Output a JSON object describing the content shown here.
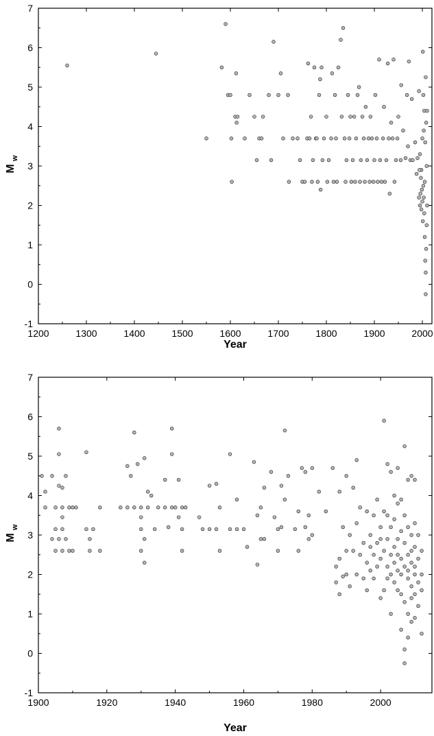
{
  "colors": {
    "marker_fill": "#b7b7b7",
    "marker_edge": "#333333",
    "axis": "#000000"
  },
  "chart_data": [
    {
      "type": "scatter",
      "xlabel": "Year",
      "ylabel": {
        "main": "M",
        "sub": "w"
      },
      "xlim": [
        1200,
        2020
      ],
      "ylim": [
        -1,
        7
      ],
      "xticks": [
        "1200",
        "1300",
        "1400",
        "1500",
        "1600",
        "1700",
        "1800",
        "1900",
        "2000"
      ],
      "yticks": [
        "-1",
        "0",
        "1",
        "2",
        "3",
        "4",
        "5",
        "6",
        "7"
      ],
      "grid": false,
      "legend": "none",
      "points": [
        [
          1260,
          5.55
        ],
        [
          1445,
          5.85
        ],
        [
          1550,
          3.7
        ],
        [
          1582,
          5.5
        ],
        [
          1590,
          6.6
        ],
        [
          1595,
          4.8
        ],
        [
          1600,
          4.8
        ],
        [
          1602,
          3.7
        ],
        [
          1603,
          2.6
        ],
        [
          1610,
          4.25
        ],
        [
          1612,
          5.35
        ],
        [
          1613,
          4.1
        ],
        [
          1615,
          4.25
        ],
        [
          1630,
          3.7
        ],
        [
          1640,
          4.8
        ],
        [
          1650,
          4.25
        ],
        [
          1655,
          3.15
        ],
        [
          1660,
          3.7
        ],
        [
          1665,
          3.7
        ],
        [
          1668,
          4.25
        ],
        [
          1680,
          4.8
        ],
        [
          1685,
          3.15
        ],
        [
          1690,
          6.15
        ],
        [
          1700,
          4.8
        ],
        [
          1705,
          5.35
        ],
        [
          1710,
          3.7
        ],
        [
          1720,
          4.8
        ],
        [
          1722,
          2.6
        ],
        [
          1730,
          3.7
        ],
        [
          1740,
          3.7
        ],
        [
          1745,
          3.15
        ],
        [
          1750,
          2.6
        ],
        [
          1755,
          2.6
        ],
        [
          1760,
          3.7
        ],
        [
          1762,
          5.6
        ],
        [
          1765,
          3.7
        ],
        [
          1768,
          4.25
        ],
        [
          1770,
          2.6
        ],
        [
          1772,
          3.15
        ],
        [
          1775,
          5.5
        ],
        [
          1778,
          3.7
        ],
        [
          1780,
          3.7
        ],
        [
          1782,
          2.6
        ],
        [
          1785,
          4.8
        ],
        [
          1787,
          5.2
        ],
        [
          1788,
          2.4
        ],
        [
          1790,
          5.5
        ],
        [
          1792,
          3.15
        ],
        [
          1795,
          3.7
        ],
        [
          1800,
          4.25
        ],
        [
          1802,
          2.6
        ],
        [
          1805,
          3.15
        ],
        [
          1810,
          3.7
        ],
        [
          1812,
          5.35
        ],
        [
          1815,
          2.6
        ],
        [
          1818,
          4.8
        ],
        [
          1820,
          3.7
        ],
        [
          1822,
          2.6
        ],
        [
          1825,
          5.5
        ],
        [
          1830,
          6.2
        ],
        [
          1832,
          4.25
        ],
        [
          1835,
          6.5
        ],
        [
          1838,
          3.7
        ],
        [
          1840,
          2.6
        ],
        [
          1842,
          3.15
        ],
        [
          1845,
          4.8
        ],
        [
          1848,
          3.7
        ],
        [
          1850,
          4.25
        ],
        [
          1852,
          2.6
        ],
        [
          1855,
          3.15
        ],
        [
          1858,
          4.25
        ],
        [
          1860,
          2.6
        ],
        [
          1862,
          3.7
        ],
        [
          1865,
          4.8
        ],
        [
          1868,
          5.0
        ],
        [
          1870,
          2.6
        ],
        [
          1872,
          3.15
        ],
        [
          1875,
          4.25
        ],
        [
          1878,
          3.7
        ],
        [
          1880,
          2.6
        ],
        [
          1882,
          4.5
        ],
        [
          1885,
          3.15
        ],
        [
          1888,
          3.7
        ],
        [
          1890,
          2.6
        ],
        [
          1892,
          4.25
        ],
        [
          1895,
          3.7
        ],
        [
          1898,
          2.6
        ],
        [
          1900,
          3.15
        ],
        [
          1902,
          4.8
        ],
        [
          1905,
          3.7
        ],
        [
          1907,
          2.6
        ],
        [
          1910,
          5.7
        ],
        [
          1912,
          3.15
        ],
        [
          1915,
          2.6
        ],
        [
          1918,
          3.7
        ],
        [
          1920,
          4.5
        ],
        [
          1922,
          2.6
        ],
        [
          1925,
          3.15
        ],
        [
          1928,
          5.6
        ],
        [
          1930,
          3.7
        ],
        [
          1932,
          2.3
        ],
        [
          1935,
          4.1
        ],
        [
          1938,
          3.7
        ],
        [
          1940,
          5.7
        ],
        [
          1942,
          2.6
        ],
        [
          1945,
          3.15
        ],
        [
          1948,
          3.7
        ],
        [
          1950,
          4.25
        ],
        [
          1955,
          3.15
        ],
        [
          1956,
          5.05
        ],
        [
          1960,
          3.9
        ],
        [
          1965,
          3.2
        ],
        [
          1968,
          4.8
        ],
        [
          1970,
          3.5
        ],
        [
          1972,
          5.65
        ],
        [
          1975,
          3.15
        ],
        [
          1978,
          4.7
        ],
        [
          1980,
          3.15
        ],
        [
          1985,
          3.6
        ],
        [
          1988,
          2.8
        ],
        [
          1990,
          3.2
        ],
        [
          1993,
          4.9
        ],
        [
          1995,
          3.3
        ],
        [
          1998,
          2.9
        ],
        [
          2000,
          3.7
        ],
        [
          2001,
          5.9
        ],
        [
          2002,
          4.8
        ],
        [
          2003,
          3.9
        ],
        [
          2004,
          4.4
        ],
        [
          2005,
          2.6
        ],
        [
          2006,
          3.6
        ],
        [
          2007,
          5.25
        ],
        [
          2008,
          4.1
        ],
        [
          2009,
          3.0
        ],
        [
          2010,
          4.4
        ],
        [
          2010,
          2.0
        ],
        [
          2009,
          1.5
        ],
        [
          2008,
          0.9
        ],
        [
          2007,
          0.3
        ],
        [
          2007,
          -0.25
        ],
        [
          2006,
          0.6
        ],
        [
          2005,
          1.2
        ],
        [
          2004,
          1.8
        ],
        [
          2003,
          2.2
        ],
        [
          2002,
          2.5
        ],
        [
          2001,
          1.6
        ],
        [
          2000,
          2.1
        ],
        [
          1999,
          2.4
        ],
        [
          1998,
          1.9
        ],
        [
          1997,
          2.7
        ],
        [
          1996,
          2.3
        ],
        [
          1995,
          2.0
        ],
        [
          1994,
          2.9
        ],
        [
          1993,
          2.2
        ]
      ]
    },
    {
      "type": "scatter",
      "xlabel": "Year",
      "ylabel": {
        "main": "M",
        "sub": "w"
      },
      "xlim": [
        1900,
        2015
      ],
      "ylim": [
        -1,
        7
      ],
      "xticks": [
        "1900",
        "1920",
        "1940",
        "1960",
        "1980",
        "2000"
      ],
      "yticks": [
        "-1",
        "0",
        "1",
        "2",
        "3",
        "4",
        "5",
        "6",
        "7"
      ],
      "grid": false,
      "legend": "none",
      "points": [
        [
          1901,
          4.5
        ],
        [
          1902,
          4.1
        ],
        [
          1902,
          3.7
        ],
        [
          1904,
          2.9
        ],
        [
          1904,
          4.5
        ],
        [
          1905,
          2.6
        ],
        [
          1905,
          3.15
        ],
        [
          1905,
          3.7
        ],
        [
          1906,
          2.9
        ],
        [
          1906,
          4.25
        ],
        [
          1906,
          5.7
        ],
        [
          1906,
          5.05
        ],
        [
          1907,
          2.6
        ],
        [
          1907,
          3.15
        ],
        [
          1907,
          3.45
        ],
        [
          1907,
          3.7
        ],
        [
          1907,
          4.2
        ],
        [
          1908,
          2.9
        ],
        [
          1908,
          4.5
        ],
        [
          1909,
          2.6
        ],
        [
          1909,
          3.7
        ],
        [
          1910,
          2.6
        ],
        [
          1910,
          3.7
        ],
        [
          1911,
          3.7
        ],
        [
          1914,
          3.15
        ],
        [
          1914,
          5.1
        ],
        [
          1915,
          2.9
        ],
        [
          1915,
          2.6
        ],
        [
          1916,
          3.15
        ],
        [
          1918,
          2.6
        ],
        [
          1918,
          3.7
        ],
        [
          1924,
          3.7
        ],
        [
          1926,
          3.7
        ],
        [
          1926,
          4.75
        ],
        [
          1927,
          4.5
        ],
        [
          1928,
          3.7
        ],
        [
          1928,
          5.6
        ],
        [
          1929,
          4.8
        ],
        [
          1930,
          3.15
        ],
        [
          1930,
          3.45
        ],
        [
          1930,
          3.7
        ],
        [
          1930,
          2.6
        ],
        [
          1931,
          2.3
        ],
        [
          1931,
          2.9
        ],
        [
          1931,
          4.95
        ],
        [
          1932,
          3.7
        ],
        [
          1932,
          4.1
        ],
        [
          1933,
          4.0
        ],
        [
          1934,
          3.15
        ],
        [
          1935,
          3.7
        ],
        [
          1937,
          3.7
        ],
        [
          1937,
          4.4
        ],
        [
          1938,
          3.2
        ],
        [
          1939,
          5.7
        ],
        [
          1939,
          3.7
        ],
        [
          1939,
          5.05
        ],
        [
          1940,
          3.7
        ],
        [
          1941,
          3.45
        ],
        [
          1941,
          4.4
        ],
        [
          1942,
          2.6
        ],
        [
          1942,
          3.15
        ],
        [
          1942,
          3.7
        ],
        [
          1943,
          3.7
        ],
        [
          1947,
          3.45
        ],
        [
          1948,
          3.15
        ],
        [
          1950,
          3.15
        ],
        [
          1950,
          4.25
        ],
        [
          1952,
          3.15
        ],
        [
          1952,
          4.3
        ],
        [
          1953,
          3.7
        ],
        [
          1953,
          2.6
        ],
        [
          1956,
          3.15
        ],
        [
          1956,
          5.05
        ],
        [
          1958,
          3.9
        ],
        [
          1958,
          3.15
        ],
        [
          1960,
          3.15
        ],
        [
          1961,
          2.7
        ],
        [
          1963,
          4.85
        ],
        [
          1964,
          2.25
        ],
        [
          1964,
          3.5
        ],
        [
          1965,
          2.9
        ],
        [
          1965,
          3.7
        ],
        [
          1966,
          4.2
        ],
        [
          1966,
          2.9
        ],
        [
          1968,
          4.6
        ],
        [
          1969,
          3.45
        ],
        [
          1970,
          3.15
        ],
        [
          1970,
          2.6
        ],
        [
          1971,
          3.2
        ],
        [
          1971,
          4.25
        ],
        [
          1972,
          5.65
        ],
        [
          1972,
          3.9
        ],
        [
          1973,
          4.5
        ],
        [
          1975,
          3.15
        ],
        [
          1976,
          2.6
        ],
        [
          1976,
          3.6
        ],
        [
          1977,
          4.7
        ],
        [
          1978,
          3.2
        ],
        [
          1978,
          4.6
        ],
        [
          1979,
          2.9
        ],
        [
          1979,
          3.5
        ],
        [
          1980,
          4.7
        ],
        [
          1980,
          3.0
        ],
        [
          1982,
          4.1
        ],
        [
          1984,
          3.6
        ],
        [
          1986,
          4.7
        ],
        [
          1987,
          2.2
        ],
        [
          1987,
          1.8
        ],
        [
          1988,
          2.4
        ],
        [
          1988,
          1.5
        ],
        [
          1988,
          4.1
        ],
        [
          1989,
          3.2
        ],
        [
          1989,
          1.95
        ],
        [
          1990,
          2.6
        ],
        [
          1990,
          2.0
        ],
        [
          1990,
          4.5
        ],
        [
          1991,
          3.0
        ],
        [
          1991,
          1.7
        ],
        [
          1992,
          2.6
        ],
        [
          1992,
          4.2
        ],
        [
          1993,
          4.9
        ],
        [
          1993,
          3.3
        ],
        [
          1993,
          2.0
        ],
        [
          1994,
          2.5
        ],
        [
          1994,
          3.7
        ],
        [
          1995,
          1.9
        ],
        [
          1995,
          2.8
        ],
        [
          1996,
          2.3
        ],
        [
          1996,
          3.6
        ],
        [
          1996,
          1.6
        ],
        [
          1997,
          2.7
        ],
        [
          1997,
          3.0
        ],
        [
          1997,
          2.1
        ],
        [
          1998,
          2.5
        ],
        [
          1998,
          3.5
        ],
        [
          1998,
          1.9
        ],
        [
          1999,
          2.8
        ],
        [
          1999,
          3.9
        ],
        [
          1999,
          2.2
        ],
        [
          2000,
          2.4
        ],
        [
          2000,
          3.2
        ],
        [
          2000,
          1.4
        ],
        [
          2000,
          2.9
        ],
        [
          2001,
          5.9
        ],
        [
          2001,
          2.6
        ],
        [
          2001,
          3.6
        ],
        [
          2001,
          1.6
        ],
        [
          2002,
          4.8
        ],
        [
          2002,
          2.2
        ],
        [
          2002,
          2.9
        ],
        [
          2002,
          3.5
        ],
        [
          2002,
          1.9
        ],
        [
          2003,
          4.6
        ],
        [
          2003,
          2.5
        ],
        [
          2003,
          3.2
        ],
        [
          2003,
          1.0
        ],
        [
          2003,
          2.0
        ],
        [
          2004,
          4.0
        ],
        [
          2004,
          2.7
        ],
        [
          2004,
          1.8
        ],
        [
          2004,
          3.4
        ],
        [
          2004,
          2.3
        ],
        [
          2005,
          4.7
        ],
        [
          2005,
          2.1
        ],
        [
          2005,
          2.9
        ],
        [
          2005,
          1.6
        ],
        [
          2005,
          3.8
        ],
        [
          2005,
          2.5
        ],
        [
          2006,
          3.9
        ],
        [
          2006,
          2.4
        ],
        [
          2006,
          1.5
        ],
        [
          2006,
          3.1
        ],
        [
          2006,
          0.6
        ],
        [
          2006,
          2.0
        ],
        [
          2007,
          5.25
        ],
        [
          2007,
          1.3
        ],
        [
          2007,
          2.2
        ],
        [
          2007,
          2.8
        ],
        [
          2007,
          0.1
        ],
        [
          2007,
          -0.25
        ],
        [
          2007,
          3.5
        ],
        [
          2008,
          4.4
        ],
        [
          2008,
          1.9
        ],
        [
          2008,
          2.5
        ],
        [
          2008,
          0.4
        ],
        [
          2008,
          3.2
        ],
        [
          2008,
          1.0
        ],
        [
          2008,
          2.1
        ],
        [
          2009,
          4.5
        ],
        [
          2009,
          1.7
        ],
        [
          2009,
          2.3
        ],
        [
          2009,
          3.0
        ],
        [
          2009,
          0.8
        ],
        [
          2009,
          1.4
        ],
        [
          2009,
          2.6
        ],
        [
          2010,
          4.4
        ],
        [
          2010,
          1.5
        ],
        [
          2010,
          2.0
        ],
        [
          2010,
          2.7
        ],
        [
          2010,
          3.3
        ],
        [
          2010,
          0.9
        ],
        [
          2010,
          2.2
        ],
        [
          2011,
          1.8
        ],
        [
          2011,
          2.4
        ],
        [
          2011,
          1.2
        ],
        [
          2011,
          3.0
        ],
        [
          2012,
          0.5
        ],
        [
          2012,
          2.0
        ],
        [
          2012,
          1.6
        ],
        [
          2012,
          2.6
        ]
      ]
    }
  ]
}
